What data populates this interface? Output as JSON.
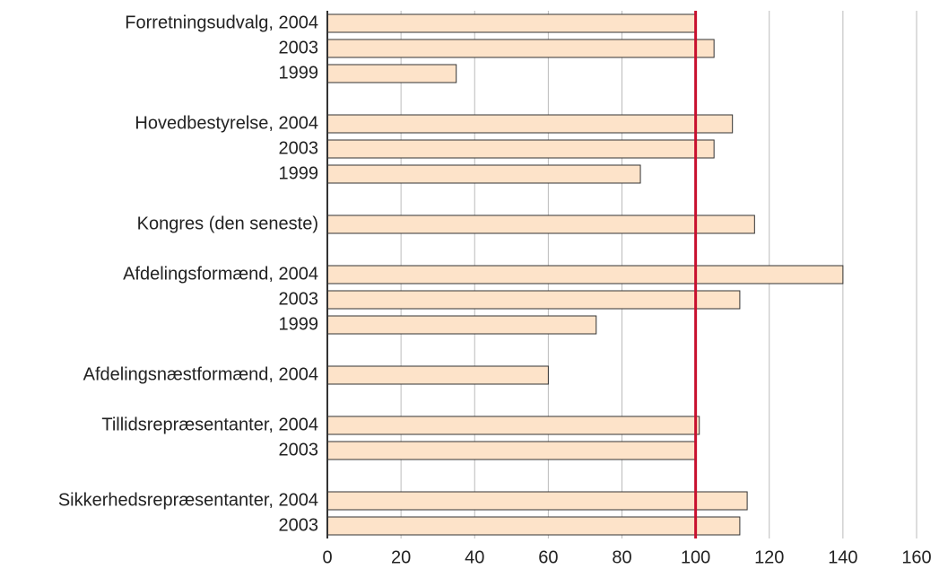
{
  "chart_data": {
    "type": "barh",
    "categories": [
      "Forretningsudvalg, 2004",
      "2003",
      "1999",
      null,
      "Hovedbestyrelse, 2004",
      "2003",
      "1999",
      null,
      "Kongres (den seneste)",
      null,
      "Afdelingsformænd, 2004",
      "2003",
      "1999",
      null,
      "Afdelingsnæstformænd, 2004",
      null,
      "Tillidsrepræsentanter, 2004",
      "2003",
      null,
      "Sikkerhedsrepræsentanter, 2004",
      "2003"
    ],
    "values": [
      100,
      105,
      35,
      null,
      110,
      105,
      85,
      null,
      116,
      null,
      140,
      112,
      73,
      null,
      60,
      null,
      101,
      100,
      null,
      114,
      112
    ],
    "color": "#fde3c9",
    "xlim": [
      0,
      160
    ],
    "xticks": [
      0,
      20,
      40,
      60,
      80,
      100,
      120,
      140,
      160
    ],
    "grid": true,
    "reference_line": 100,
    "reference_color": "#c8102e"
  }
}
